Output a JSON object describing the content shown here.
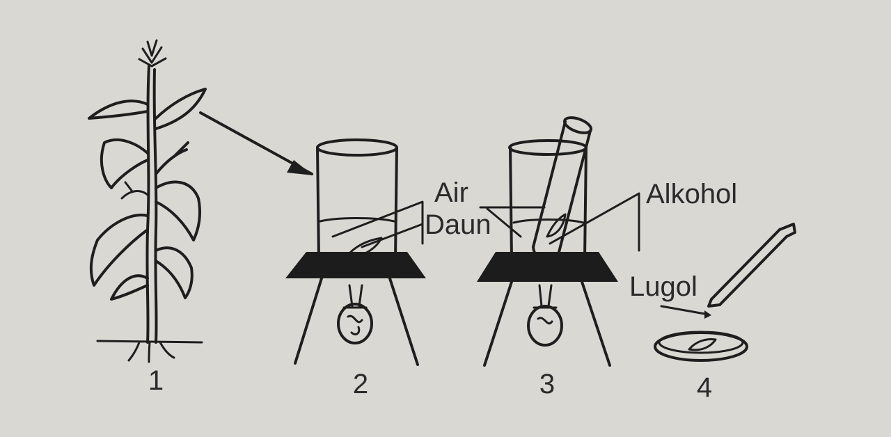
{
  "diagram": {
    "labels": {
      "water": "Air",
      "leaf": "Daun",
      "alcohol": "Alkohol",
      "iodine": "Lugol"
    },
    "steps": [
      "1",
      "2",
      "3",
      "4"
    ],
    "colors": {
      "background": "#d9d8d3",
      "ink": "#1e1e1e",
      "tripod_top": "#1c1c1c"
    }
  }
}
